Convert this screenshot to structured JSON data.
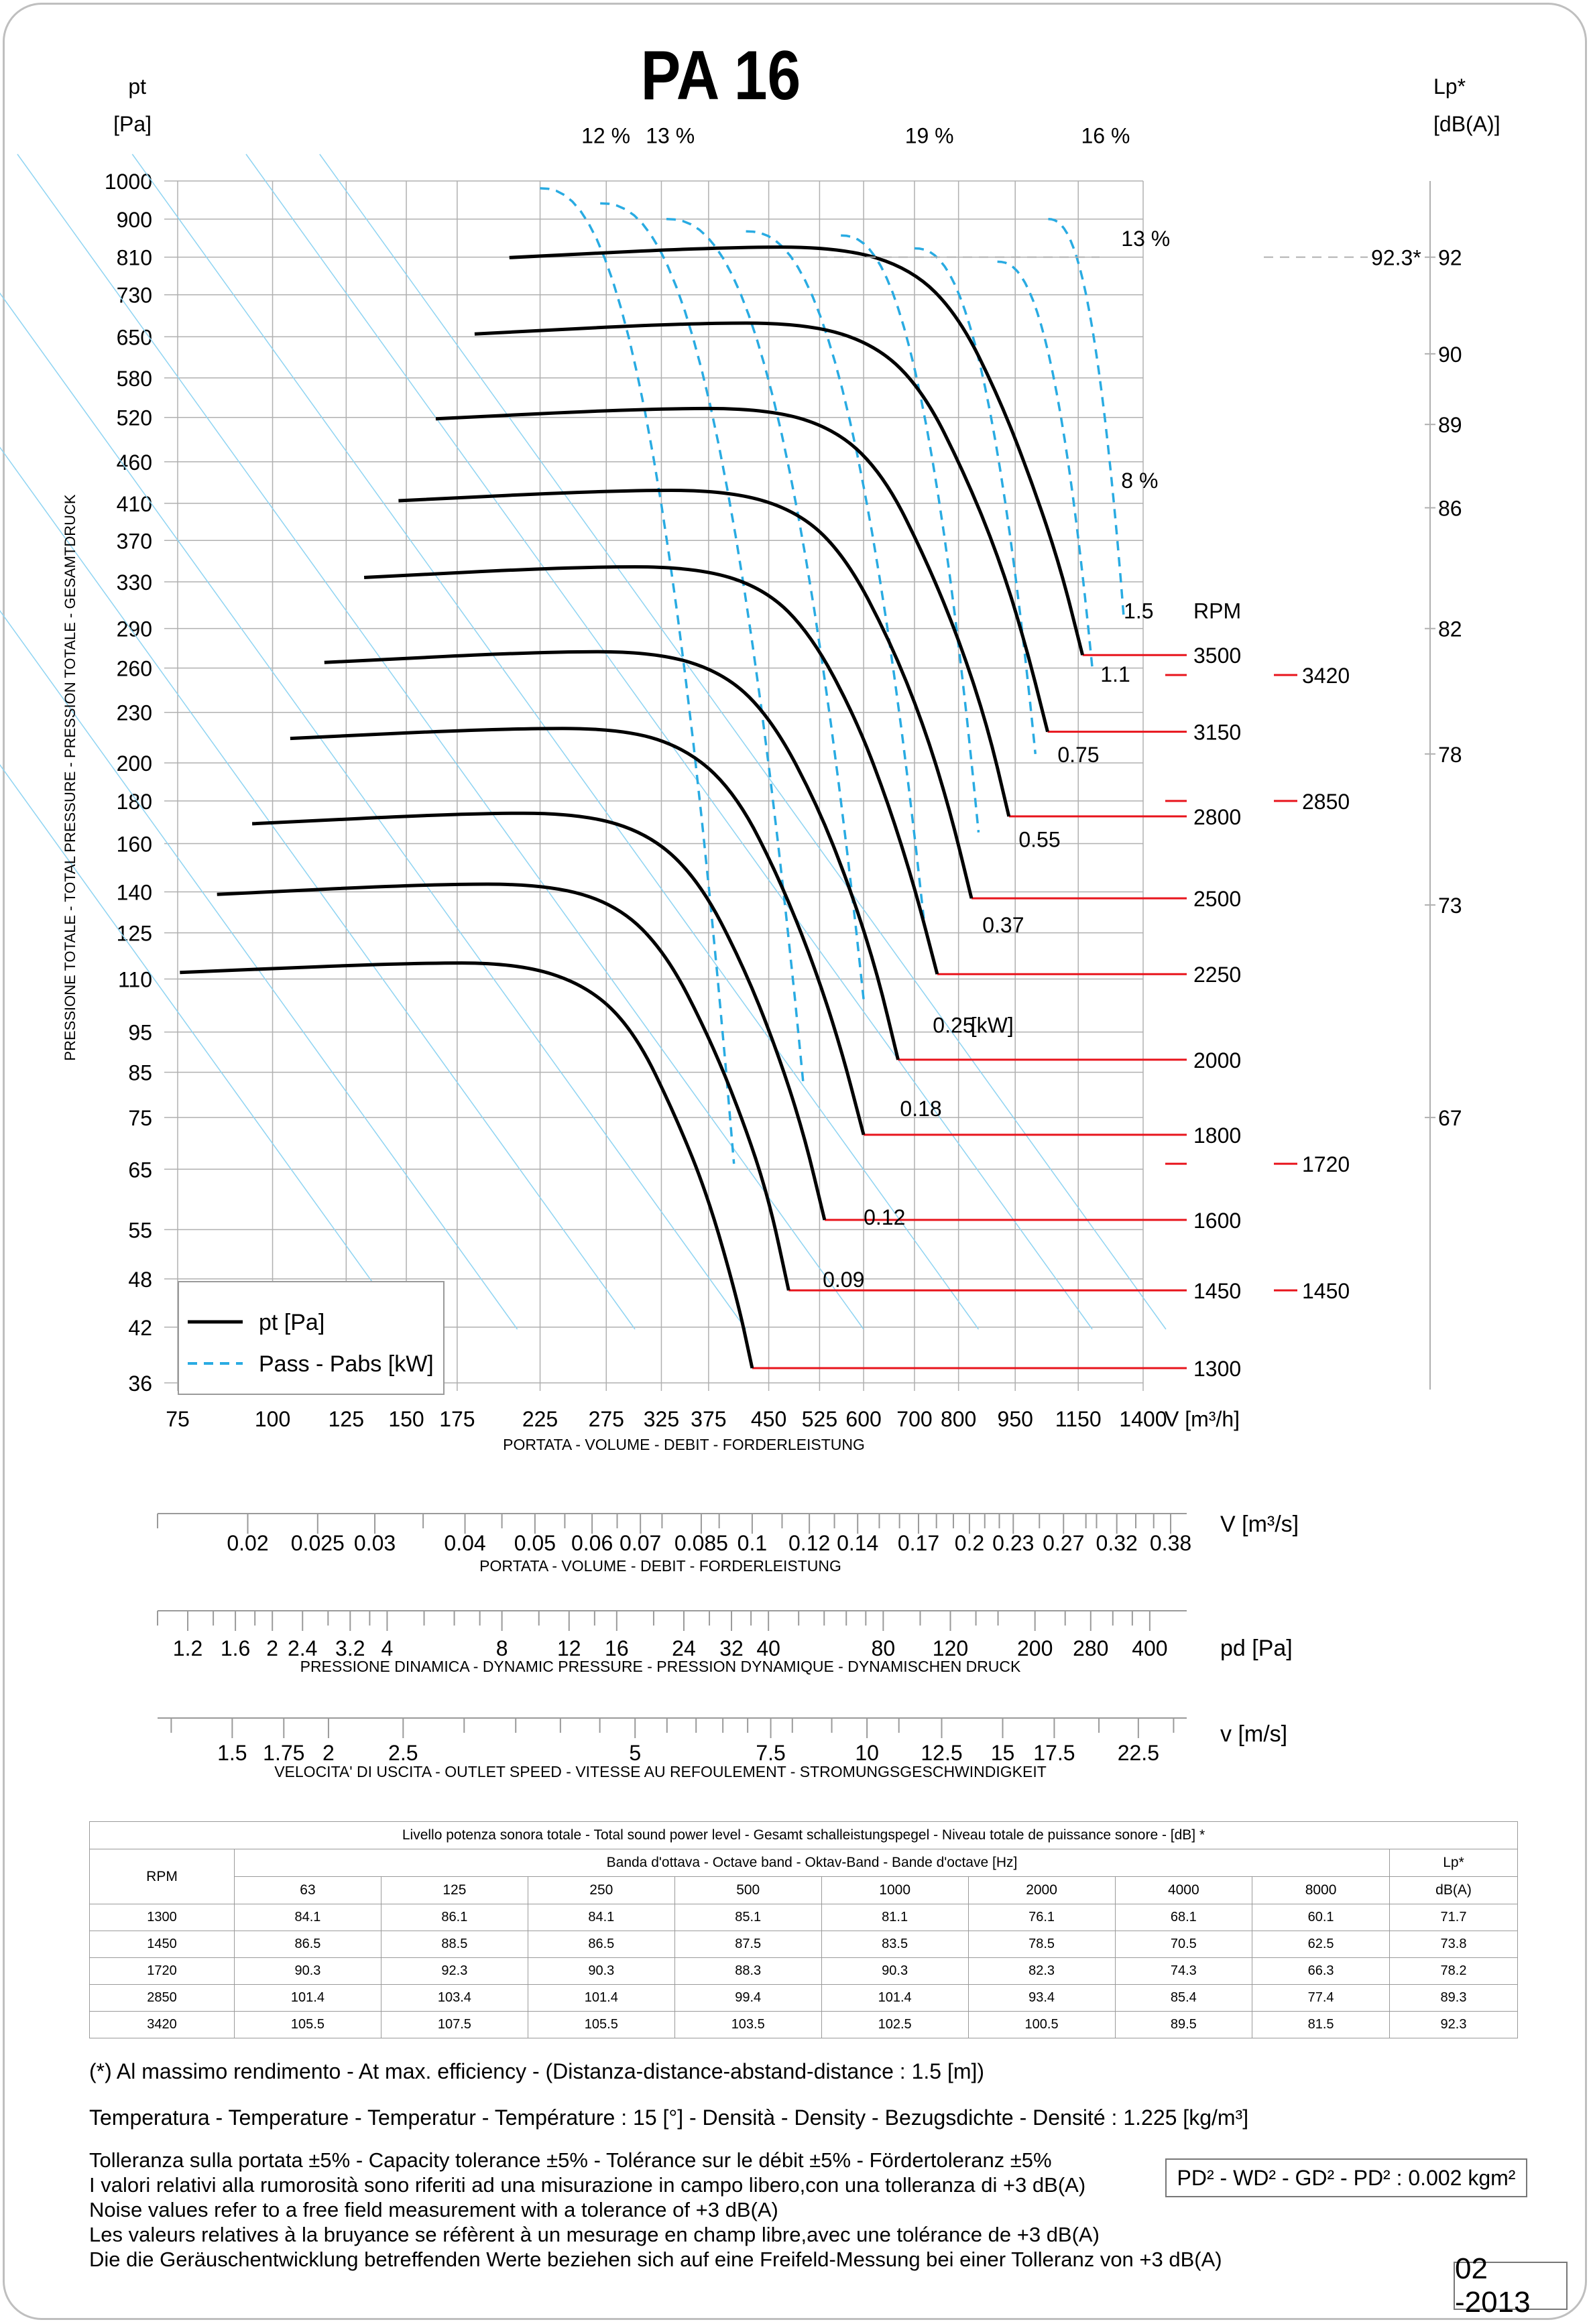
{
  "title": "PA 16",
  "left_axis": {
    "label_top": "pt",
    "label_unit": "[Pa]",
    "ylabel": "PRESSIONE TOTALE - TOTAL PRESSURE - PRESSION TOTALE - GESAMTDRUCK"
  },
  "right_axis": {
    "label_top": "Lp*",
    "label_unit": "[dB(A)]"
  },
  "colors": {
    "curve": "#000000",
    "power": "#29abe2",
    "efficiency": "#8fd4f2",
    "rpm_line": "#e8141c",
    "grid": "#b0b0b0"
  },
  "legend": {
    "pt_label": "pt [Pa]",
    "power_label": "Pass - Pabs [kW]"
  },
  "chart_data": {
    "type": "line",
    "title": "PA 16",
    "x_scale": "log",
    "y_scale": "log",
    "xlabel": "PORTATA - VOLUME - DEBIT - FORDERLEISTUNG",
    "x_unit": "V [m³/h]",
    "ylabel": "PRESSIONE TOTALE - TOTAL PRESSURE - PRESSION TOTALE - GESAMTDRUCK",
    "xlim": [
      75,
      1400
    ],
    "ylim": [
      36,
      1000
    ],
    "x_ticks": [
      75,
      100,
      125,
      150,
      175,
      225,
      275,
      325,
      375,
      450,
      525,
      600,
      700,
      800,
      950,
      1150,
      1400
    ],
    "x_tick_labels": [
      "75",
      "100",
      "125",
      "150",
      "175",
      "225",
      "275",
      "325",
      "375",
      "450",
      "525",
      "600",
      "700",
      "800",
      "950",
      "1150",
      "1400"
    ],
    "y_ticks": [
      36,
      42,
      48,
      55,
      65,
      75,
      85,
      95,
      110,
      125,
      140,
      160,
      180,
      200,
      230,
      260,
      290,
      330,
      370,
      410,
      460,
      520,
      580,
      650,
      730,
      810,
      900,
      1000
    ],
    "y_tick_labels": [
      "36",
      "42",
      "48",
      "55",
      "65",
      "75",
      "85",
      "95",
      "110",
      "125",
      "140",
      "160",
      "180",
      "200",
      "230",
      "260",
      "290",
      "330",
      "370",
      "410",
      "460",
      "520",
      "580",
      "650",
      "730",
      "810",
      "900",
      "1000"
    ],
    "rpm_header": "RPM",
    "series": [
      {
        "rpm": "1300",
        "points": [
          [
            75.5,
            112
          ],
          [
            150,
            115
          ],
          [
            210,
            115
          ],
          [
            260,
            108
          ],
          [
            300,
            95
          ],
          [
            340,
            75
          ],
          [
            375,
            60
          ],
          [
            410,
            45
          ],
          [
            428,
            37.5
          ]
        ]
      },
      {
        "rpm": "1450",
        "points": [
          [
            84.5,
            139
          ],
          [
            160,
            143
          ],
          [
            230,
            143
          ],
          [
            285,
            135
          ],
          [
            330,
            118
          ],
          [
            375,
            94
          ],
          [
            415,
            75
          ],
          [
            450,
            60
          ],
          [
            478,
            46.5
          ]
        ]
      },
      {
        "rpm": "1600",
        "points": [
          [
            94,
            169
          ],
          [
            180,
            174
          ],
          [
            255,
            174
          ],
          [
            315,
            164
          ],
          [
            365,
            144
          ],
          [
            415,
            115
          ],
          [
            460,
            91
          ],
          [
            500,
            72
          ],
          [
            533,
            56.5
          ]
        ]
      },
      {
        "rpm": "1800",
        "points": [
          [
            105.5,
            214
          ],
          [
            200,
            220
          ],
          [
            290,
            220
          ],
          [
            355,
            207
          ],
          [
            410,
            182
          ],
          [
            465,
            145
          ],
          [
            515,
            115
          ],
          [
            560,
            91
          ],
          [
            600,
            71.5
          ]
        ]
      },
      {
        "rpm": "2000",
        "points": [
          [
            117,
            264
          ],
          [
            225,
            272
          ],
          [
            320,
            272
          ],
          [
            395,
            256
          ],
          [
            455,
            225
          ],
          [
            520,
            179
          ],
          [
            575,
            142
          ],
          [
            625,
            112
          ],
          [
            666,
            88
          ]
        ]
      },
      {
        "rpm": "2250",
        "points": [
          [
            132,
            334
          ],
          [
            250,
            344
          ],
          [
            360,
            344
          ],
          [
            445,
            324
          ],
          [
            512,
            285
          ],
          [
            585,
            227
          ],
          [
            645,
            180
          ],
          [
            700,
            142
          ],
          [
            750,
            111.5
          ]
        ]
      },
      {
        "rpm": "2500",
        "points": [
          [
            146.5,
            413
          ],
          [
            280,
            425
          ],
          [
            400,
            425
          ],
          [
            495,
            400
          ],
          [
            570,
            352
          ],
          [
            650,
            280
          ],
          [
            720,
            222
          ],
          [
            780,
            175
          ],
          [
            832,
            137.5
          ]
        ]
      },
      {
        "rpm": "2800",
        "points": [
          [
            164,
            518
          ],
          [
            310,
            533
          ],
          [
            450,
            533
          ],
          [
            555,
            502
          ],
          [
            640,
            441
          ],
          [
            725,
            351
          ],
          [
            805,
            278
          ],
          [
            875,
            220
          ],
          [
            932,
            172.5
          ]
        ]
      },
      {
        "rpm": "3150",
        "points": [
          [
            184.5,
            655
          ],
          [
            350,
            675
          ],
          [
            505,
            675
          ],
          [
            625,
            635
          ],
          [
            720,
            558
          ],
          [
            815,
            445
          ],
          [
            905,
            352
          ],
          [
            980,
            278
          ],
          [
            1048,
            218
          ]
        ]
      },
      {
        "rpm": "3500",
        "points": [
          [
            205,
            809
          ],
          [
            390,
            833
          ],
          [
            560,
            833
          ],
          [
            695,
            784
          ],
          [
            800,
            689
          ],
          [
            905,
            549
          ],
          [
            1000,
            434
          ],
          [
            1090,
            343
          ],
          [
            1165,
            269.5
          ]
        ]
      }
    ],
    "power_labels": [
      {
        "value": "0.09",
        "x": 530,
        "y": 48
      },
      {
        "value": "0.12",
        "x": 600,
        "y": 57
      },
      {
        "value": "0.18",
        "x": 670,
        "y": 77
      },
      {
        "value": "0.25",
        "x": 740,
        "y": 97
      },
      {
        "value": "[kW]",
        "x": 830,
        "y": 97
      },
      {
        "value": "0.37",
        "x": 860,
        "y": 128
      },
      {
        "value": "0.55",
        "x": 960,
        "y": 162
      },
      {
        "value": "0.75",
        "x": 1080,
        "y": 205
      },
      {
        "value": "1.1",
        "x": 1230,
        "y": 256
      },
      {
        "value": "1.5",
        "x": 1320,
        "y": 305
      }
    ],
    "efficiency_labels": [
      {
        "value": "12 %",
        "x": 255,
        "y": 1090
      },
      {
        "value": "13 %",
        "x": 310,
        "y": 1090
      },
      {
        "value": "19 %",
        "x": 680,
        "y": 1090
      },
      {
        "value": "16 %",
        "x": 1160,
        "y": 1090
      },
      {
        "value": "13 %",
        "x": 1310,
        "y": 820
      },
      {
        "value": "8 %",
        "x": 1310,
        "y": 420
      }
    ],
    "lp_axis": {
      "ticks": [
        67,
        73,
        78,
        82,
        86,
        89,
        90,
        92
      ],
      "tick_pressures": [
        75,
        135,
        205,
        290,
        405,
        510,
        620,
        810
      ],
      "dashed_value": "92.3*"
    },
    "rpm_markers": [
      {
        "rpm": "3420",
        "y": 255
      },
      {
        "rpm": "2850",
        "y": 180
      },
      {
        "rpm": "1720",
        "y": 66
      },
      {
        "rpm": "1450",
        "y": 46.5
      }
    ]
  },
  "secondary_scales": [
    {
      "unit": "V  [m³/s]",
      "label": "PORTATA - VOLUME - DEBIT - FORDERLEISTUNG",
      "ticks": [
        "0.02",
        "0.025",
        "0.03",
        "0.04",
        "0.05",
        "0.06",
        "0.07",
        "0.085",
        "0.1",
        "0.12",
        "0.14",
        "0.17",
        "0.2",
        "0.23",
        "0.27",
        "0.32",
        "0.38"
      ],
      "values": [
        0.02,
        0.025,
        0.03,
        0.04,
        0.05,
        0.06,
        0.07,
        0.085,
        0.1,
        0.12,
        0.14,
        0.17,
        0.2,
        0.23,
        0.27,
        0.32,
        0.38
      ],
      "minor": [
        0.015,
        0.035,
        0.045,
        0.055,
        0.065,
        0.075,
        0.09,
        0.11,
        0.13,
        0.15,
        0.16,
        0.18,
        0.19,
        0.21,
        0.22,
        0.25,
        0.29,
        0.3,
        0.34,
        0.36
      ]
    },
    {
      "unit": "pd  [Pa]",
      "label": "PRESSIONE DINAMICA - DYNAMIC PRESSURE - PRESSION DYNAMIQUE - DYNAMISCHEN DRUCK",
      "ticks": [
        "1.2",
        "1.6",
        "2",
        "2.4",
        "3.2",
        "4",
        "8",
        "12",
        "16",
        "24",
        "32",
        "40",
        "80",
        "120",
        "200",
        "280",
        "400"
      ],
      "values": [
        1.2,
        1.6,
        2,
        2.4,
        3.2,
        4,
        8,
        12,
        16,
        24,
        32,
        40,
        80,
        120,
        200,
        280,
        400
      ],
      "minor": [
        1,
        1.4,
        1.8,
        2.8,
        3.6,
        5,
        6,
        7,
        10,
        14,
        20,
        28,
        36,
        48,
        56,
        64,
        72,
        100,
        140,
        160,
        240,
        320,
        360
      ]
    },
    {
      "unit": "v  [m/s]",
      "label": "VELOCITA' DI USCITA - OUTLET SPEED - VITESSE AU REFOULEMENT - STROMUNGSGESCHWINDIGKEIT",
      "ticks": [
        "1.5",
        "1.75",
        "2",
        "2.5",
        "5",
        "7.5",
        "10",
        "12.5",
        "15",
        "17.5",
        "22.5"
      ],
      "values": [
        1.5,
        1.75,
        2,
        2.5,
        5,
        7.5,
        10,
        12.5,
        15,
        17.5,
        22.5
      ],
      "minor": [
        1.25,
        3,
        3.5,
        4,
        4.5,
        5.5,
        6,
        6.5,
        7,
        8,
        9,
        11,
        20,
        25
      ]
    }
  ],
  "sound_table": {
    "title": "Livello potenza sonora totale - Total sound power level - Gesamt schalleistungspegel - Niveau totale de puissance sonore - [dB]   *",
    "band_header": "Banda d'ottava - Octave band - Oktav-Band - Bande d'octave [Hz]",
    "rpm_header": "RPM",
    "lp_header": "Lp*",
    "lp_unit": "dB(A)",
    "bands": [
      "63",
      "125",
      "250",
      "500",
      "1000",
      "2000",
      "4000",
      "8000"
    ],
    "rows": [
      {
        "rpm": "1300",
        "values": [
          "84.1",
          "86.1",
          "84.1",
          "85.1",
          "81.1",
          "76.1",
          "68.1",
          "60.1"
        ],
        "lp": "71.7"
      },
      {
        "rpm": "1450",
        "values": [
          "86.5",
          "88.5",
          "86.5",
          "87.5",
          "83.5",
          "78.5",
          "70.5",
          "62.5"
        ],
        "lp": "73.8"
      },
      {
        "rpm": "1720",
        "values": [
          "90.3",
          "92.3",
          "90.3",
          "88.3",
          "90.3",
          "82.3",
          "74.3",
          "66.3"
        ],
        "lp": "78.2"
      },
      {
        "rpm": "2850",
        "values": [
          "101.4",
          "103.4",
          "101.4",
          "99.4",
          "101.4",
          "93.4",
          "85.4",
          "77.4"
        ],
        "lp": "89.3"
      },
      {
        "rpm": "3420",
        "values": [
          "105.5",
          "107.5",
          "105.5",
          "103.5",
          "102.5",
          "100.5",
          "89.5",
          "81.5"
        ],
        "lp": "92.3"
      }
    ]
  },
  "notes": {
    "efficiency": "(*) Al massimo rendimento - At max. efficiency - (Distanza-distance-abstand-distance : 1.5 [m])",
    "temperature": "Temperatura - Temperature - Temperatur - Température : 15 [°]  -  Densità - Density - Bezugsdichte - Densité : 1.225 [kg/m³]",
    "tolerance": [
      "Tolleranza sulla portata  ±5% - Capacity tolerance ±5% - Tolérance sur le débit ±5% - Fördertoleranz ±5%",
      "I valori relativi alla rumorosità sono riferiti ad una misurazione in campo libero,con una tolleranza di +3 dB(A)",
      "Noise values refer to a free field measurement with a tolerance of +3 dB(A)",
      "Les valeurs relatives à la bruyance se réfèrent à un mesurage en champ libre,avec une tolérance de +3 dB(A)",
      "Die die Geräuschentwicklung betreffenden Werte beziehen sich auf eine Freifeld-Messung bei einer Tolleranz von +3 dB(A)"
    ],
    "inertia": "PD² -  WD² - GD² -  PD²  :  0.002 kgm²",
    "date": "02 -2013"
  }
}
